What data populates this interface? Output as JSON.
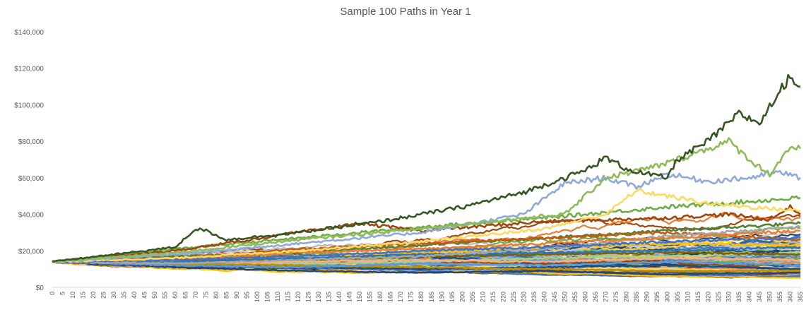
{
  "chart_data": {
    "type": "line",
    "title": "Sample 100 Paths in Year 1",
    "xlabel": "",
    "ylabel": "",
    "xlim": [
      0,
      365
    ],
    "ylim": [
      0,
      140000
    ],
    "y_ticks": [
      "$0",
      "$20,000",
      "$40,000",
      "$60,000",
      "$80,000",
      "$100,000",
      "$120,000",
      "$140,000"
    ],
    "x_ticks": [
      "0",
      "5",
      "10",
      "15",
      "20",
      "25",
      "30",
      "35",
      "40",
      "45",
      "50",
      "55",
      "60",
      "65",
      "70",
      "75",
      "80",
      "85",
      "90",
      "95",
      "100",
      "105",
      "110",
      "115",
      "120",
      "125",
      "130",
      "135",
      "140",
      "145",
      "150",
      "155",
      "160",
      "165",
      "170",
      "175",
      "180",
      "185",
      "190",
      "195",
      "200",
      "205",
      "210",
      "215",
      "220",
      "225",
      "230",
      "235",
      "240",
      "245",
      "250",
      "255",
      "260",
      "265",
      "270",
      "275",
      "280",
      "285",
      "290",
      "295",
      "300",
      "305",
      "310",
      "315",
      "320",
      "325",
      "330",
      "335",
      "340",
      "345",
      "350",
      "355",
      "360",
      "365"
    ],
    "grid": false,
    "legend": "none",
    "series_count": 100,
    "start_value": 14000,
    "series": [
      {
        "color": "#375623",
        "x": [
          0,
          30,
          60,
          70,
          75,
          85,
          120,
          160,
          200,
          230,
          240,
          260,
          270,
          280,
          290,
          300,
          305,
          320,
          335,
          345,
          360,
          365
        ],
        "y": [
          14000,
          18000,
          22000,
          32000,
          31000,
          26000,
          30000,
          36000,
          44000,
          52000,
          56000,
          64000,
          71000,
          65000,
          62000,
          60000,
          70000,
          80000,
          95000,
          90000,
          116000,
          110000
        ]
      },
      {
        "color": "#8FBC5A",
        "x": [
          0,
          60,
          120,
          180,
          230,
          250,
          270,
          290,
          300,
          310,
          320,
          330,
          340,
          350,
          360,
          365
        ],
        "y": [
          14000,
          19000,
          26000,
          32000,
          38000,
          40000,
          60000,
          65000,
          68000,
          72000,
          76000,
          80000,
          70000,
          62000,
          77000,
          76000
        ]
      },
      {
        "color": "#8EAADB",
        "x": [
          0,
          60,
          120,
          180,
          230,
          250,
          270,
          285,
          300,
          320,
          340,
          355,
          365
        ],
        "y": [
          14000,
          18000,
          24000,
          30000,
          40000,
          57000,
          60000,
          55000,
          62000,
          58000,
          60000,
          63000,
          60000
        ]
      },
      {
        "color": "#FFD966",
        "x": [
          0,
          60,
          120,
          180,
          240,
          270,
          285,
          300,
          320,
          340,
          365
        ],
        "y": [
          14000,
          16000,
          20000,
          25000,
          32000,
          40000,
          53000,
          50000,
          46000,
          44000,
          42000
        ]
      },
      {
        "color": "#9E480E",
        "x": [
          0,
          60,
          120,
          150,
          180,
          240,
          300,
          330,
          350,
          360,
          365
        ],
        "y": [
          14000,
          20000,
          30000,
          35000,
          31000,
          36000,
          38000,
          40000,
          37000,
          44000,
          40000
        ]
      },
      {
        "color": "#70AD47",
        "x": [
          0,
          60,
          120,
          180,
          240,
          300,
          340,
          365
        ],
        "y": [
          14000,
          21000,
          27000,
          33000,
          38000,
          44000,
          47000,
          49000
        ]
      },
      {
        "color": "#4472C4",
        "x": [
          0,
          60,
          120,
          180,
          240,
          300,
          365
        ],
        "y": [
          14000,
          15000,
          17000,
          20000,
          22000,
          25000,
          27000
        ]
      },
      {
        "color": "#ED7D31",
        "x": [
          0,
          60,
          120,
          180,
          240,
          300,
          365
        ],
        "y": [
          14000,
          15000,
          19000,
          21000,
          24000,
          27000,
          31000
        ]
      },
      {
        "color": "#A5A5A5",
        "x": [
          0,
          60,
          120,
          180,
          240,
          300,
          365
        ],
        "y": [
          14000,
          13000,
          15000,
          17000,
          21000,
          28000,
          33000
        ]
      },
      {
        "color": "#5B9BD5",
        "x": [
          0,
          60,
          120,
          180,
          240,
          300,
          365
        ],
        "y": [
          14000,
          12000,
          11000,
          13000,
          12000,
          14000,
          12000
        ]
      },
      {
        "color": "#264478",
        "x": [
          0,
          60,
          120,
          180,
          240,
          300,
          365
        ],
        "y": [
          14000,
          11000,
          9000,
          8000,
          9000,
          7000,
          8000
        ]
      },
      {
        "color": "#C55A11",
        "x": [
          0,
          60,
          120,
          180,
          240,
          300,
          365
        ],
        "y": [
          14000,
          16000,
          21000,
          24000,
          27000,
          30000,
          26000
        ]
      },
      {
        "color": "#BF8F00",
        "x": [
          0,
          60,
          120,
          180,
          240,
          300,
          365
        ],
        "y": [
          14000,
          13000,
          12000,
          11000,
          10000,
          9000,
          9000
        ]
      },
      {
        "color": "#2E75B6",
        "x": [
          0,
          60,
          120,
          180,
          240,
          300,
          365
        ],
        "y": [
          14000,
          14000,
          16000,
          18000,
          19000,
          20000,
          22000
        ]
      },
      {
        "color": "#548235",
        "x": [
          0,
          60,
          120,
          180,
          240,
          300,
          365
        ],
        "y": [
          14000,
          17000,
          19000,
          23000,
          27000,
          31000,
          35000
        ]
      },
      {
        "color": "#F4B183",
        "x": [
          0,
          60,
          120,
          180,
          240,
          300,
          365
        ],
        "y": [
          14000,
          13000,
          14000,
          15000,
          14000,
          16000,
          15000
        ]
      },
      {
        "color": "#7F6000",
        "x": [
          0,
          60,
          120,
          180,
          240,
          300,
          365
        ],
        "y": [
          14000,
          15000,
          15000,
          17000,
          18000,
          19000,
          18000
        ]
      },
      {
        "color": "#A9D18E",
        "x": [
          0,
          60,
          120,
          180,
          240,
          300,
          365
        ],
        "y": [
          14000,
          14000,
          13000,
          14000,
          16000,
          17000,
          19000
        ]
      },
      {
        "color": "#1F4E79",
        "x": [
          0,
          60,
          120,
          180,
          240,
          300,
          365
        ],
        "y": [
          14000,
          12000,
          11000,
          10000,
          11000,
          12000,
          10000
        ]
      },
      {
        "color": "#FFC000",
        "x": [
          0,
          60,
          120,
          180,
          240,
          300,
          365
        ],
        "y": [
          14000,
          15000,
          17000,
          19000,
          22000,
          24000,
          23000
        ]
      }
    ]
  }
}
